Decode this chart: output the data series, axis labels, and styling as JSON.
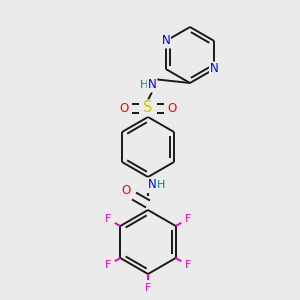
{
  "bg_color": "#ebebeb",
  "bond_color": "#1a1a1a",
  "bond_width": 1.4,
  "atom_colors": {
    "N": "#0000ee",
    "O": "#ff0000",
    "S": "#cccc00",
    "F": "#ff00bb",
    "H": "#008888",
    "C": "#1a1a1a"
  },
  "font_size": 8.5,
  "fig_width": 3.0,
  "fig_height": 3.0,
  "dpi": 100
}
